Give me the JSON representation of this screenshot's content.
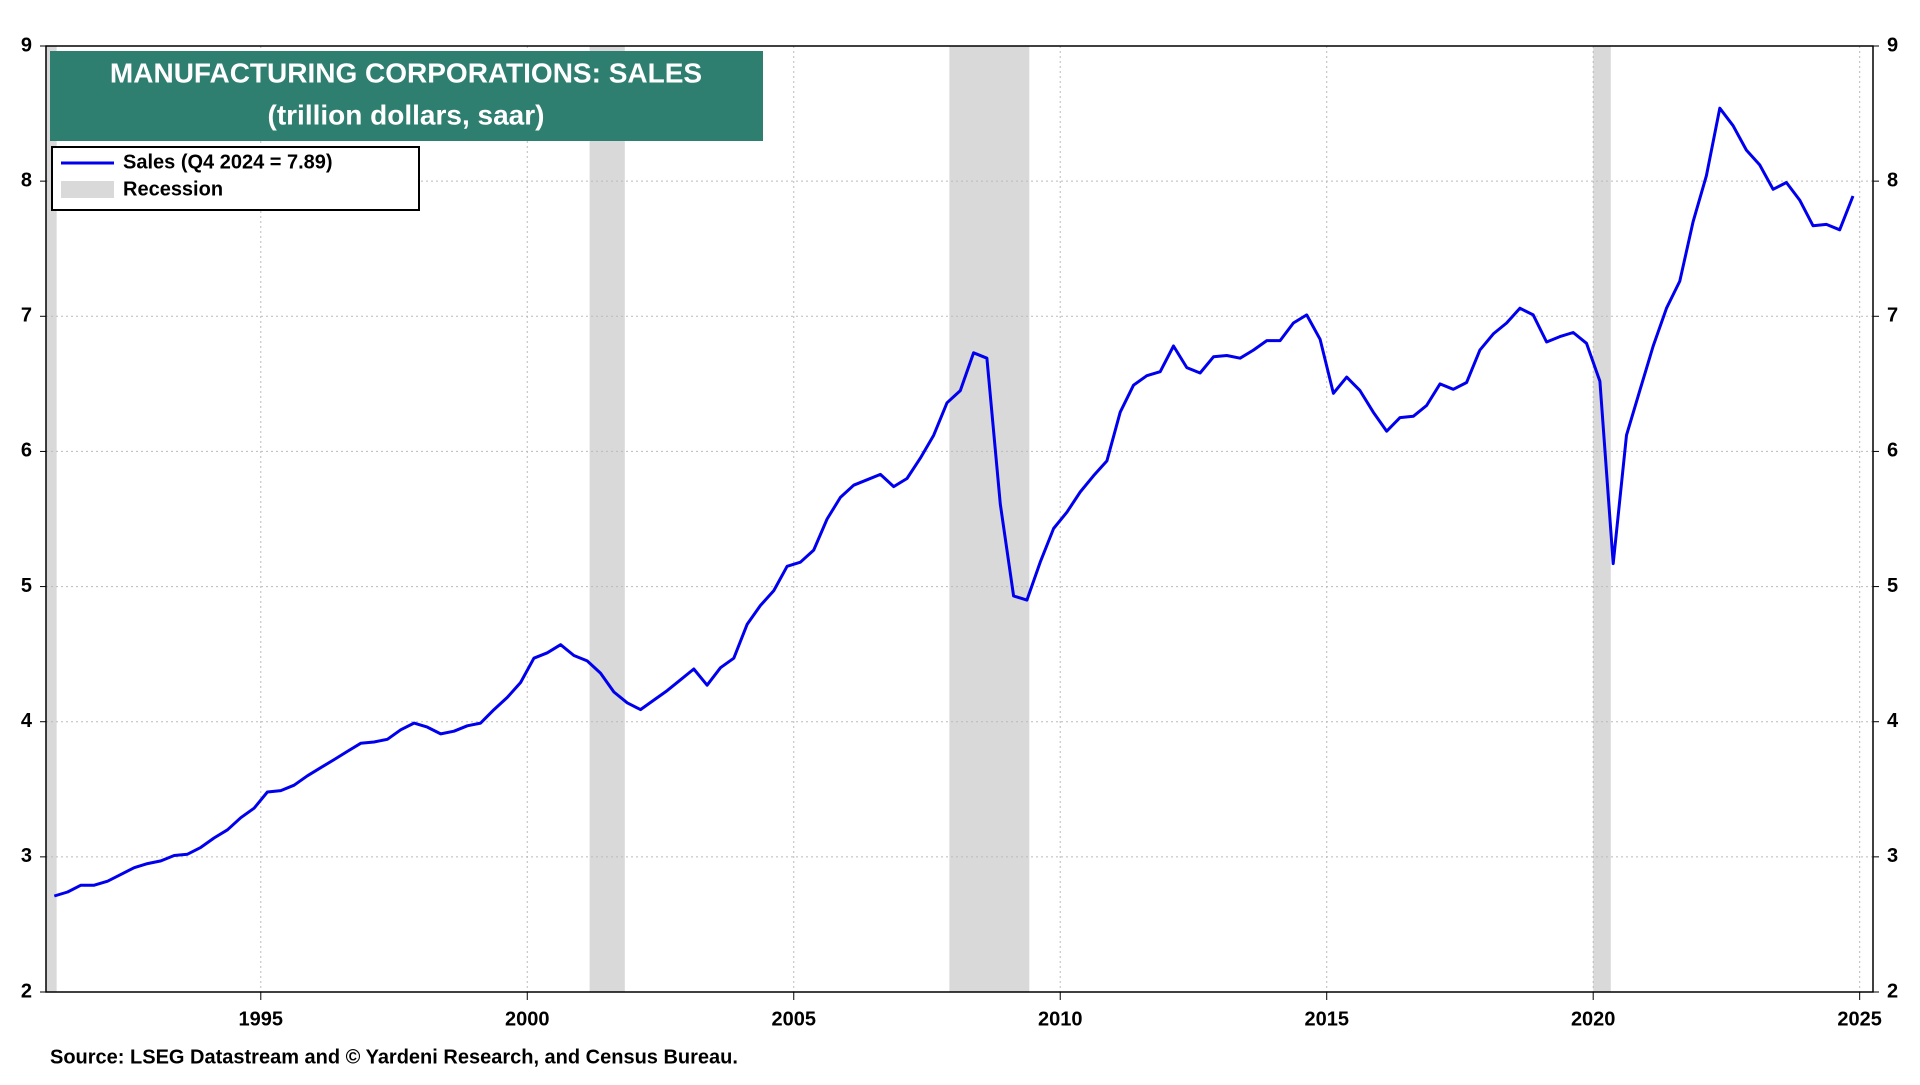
{
  "chart_data": {
    "type": "line",
    "title": "MANUFACTURING CORPORATIONS: SALES",
    "subtitle": "(trillion dollars, saar)",
    "source": "Source: LSEG Datastream and © Yardeni Research, and Census Bureau.",
    "x": [
      1991.125,
      1991.375,
      1991.625,
      1991.875,
      1992.125,
      1992.375,
      1992.625,
      1992.875,
      1993.125,
      1993.375,
      1993.625,
      1993.875,
      1994.125,
      1994.375,
      1994.625,
      1994.875,
      1995.125,
      1995.375,
      1995.625,
      1995.875,
      1996.125,
      1996.375,
      1996.625,
      1996.875,
      1997.125,
      1997.375,
      1997.625,
      1997.875,
      1998.125,
      1998.375,
      1998.625,
      1998.875,
      1999.125,
      1999.375,
      1999.625,
      1999.875,
      2000.125,
      2000.375,
      2000.625,
      2000.875,
      2001.125,
      2001.375,
      2001.625,
      2001.875,
      2002.125,
      2002.375,
      2002.625,
      2002.875,
      2003.125,
      2003.375,
      2003.625,
      2003.875,
      2004.125,
      2004.375,
      2004.625,
      2004.875,
      2005.125,
      2005.375,
      2005.625,
      2005.875,
      2006.125,
      2006.375,
      2006.625,
      2006.875,
      2007.125,
      2007.375,
      2007.625,
      2007.875,
      2008.125,
      2008.375,
      2008.625,
      2008.875,
      2009.125,
      2009.375,
      2009.625,
      2009.875,
      2010.125,
      2010.375,
      2010.625,
      2010.875,
      2011.125,
      2011.375,
      2011.625,
      2011.875,
      2012.125,
      2012.375,
      2012.625,
      2012.875,
      2013.125,
      2013.375,
      2013.625,
      2013.875,
      2014.125,
      2014.375,
      2014.625,
      2014.875,
      2015.125,
      2015.375,
      2015.625,
      2015.875,
      2016.125,
      2016.375,
      2016.625,
      2016.875,
      2017.125,
      2017.375,
      2017.625,
      2017.875,
      2018.125,
      2018.375,
      2018.625,
      2018.875,
      2019.125,
      2019.375,
      2019.625,
      2019.875,
      2020.125,
      2020.375,
      2020.625,
      2020.875,
      2021.125,
      2021.375,
      2021.625,
      2021.875,
      2022.125,
      2022.375,
      2022.625,
      2022.875,
      2023.125,
      2023.375,
      2023.625,
      2023.875,
      2024.125,
      2024.375,
      2024.625,
      2024.875
    ],
    "series": [
      {
        "name": "Sales (Q4 2024 = 7.89)",
        "color": "#0000ee",
        "values": [
          2.71,
          2.74,
          2.79,
          2.79,
          2.82,
          2.87,
          2.92,
          2.95,
          2.97,
          3.01,
          3.02,
          3.07,
          3.14,
          3.2,
          3.29,
          3.36,
          3.48,
          3.49,
          3.53,
          3.6,
          3.66,
          3.72,
          3.78,
          3.84,
          3.85,
          3.87,
          3.94,
          3.99,
          3.96,
          3.91,
          3.93,
          3.97,
          3.99,
          4.09,
          4.18,
          4.29,
          4.47,
          4.51,
          4.57,
          4.49,
          4.45,
          4.36,
          4.22,
          4.14,
          4.09,
          4.16,
          4.23,
          4.31,
          4.39,
          4.27,
          4.4,
          4.47,
          4.72,
          4.86,
          4.97,
          5.15,
          5.18,
          5.27,
          5.5,
          5.66,
          5.75,
          5.79,
          5.83,
          5.74,
          5.8,
          5.95,
          6.12,
          6.36,
          6.45,
          6.73,
          6.69,
          5.61,
          4.93,
          4.9,
          5.18,
          5.43,
          5.55,
          5.7,
          5.82,
          5.93,
          6.29,
          6.49,
          6.56,
          6.59,
          6.78,
          6.62,
          6.58,
          6.7,
          6.71,
          6.69,
          6.75,
          6.82,
          6.82,
          6.95,
          7.01,
          6.83,
          6.43,
          6.55,
          6.45,
          6.29,
          6.15,
          6.25,
          6.26,
          6.34,
          6.5,
          6.46,
          6.51,
          6.75,
          6.87,
          6.95,
          7.06,
          7.01,
          6.81,
          6.85,
          6.88,
          6.8,
          6.52,
          5.17,
          6.12,
          6.45,
          6.78,
          7.06,
          7.26,
          7.7,
          8.04,
          8.54,
          8.41,
          8.23,
          8.12,
          7.94,
          7.99,
          7.86,
          7.67,
          7.68,
          7.64,
          7.89
        ]
      }
    ],
    "recessions": {
      "name": "Recession",
      "color": "#d9d9d9",
      "periods": [
        [
          1990.58,
          1991.17
        ],
        [
          2001.17,
          2001.83
        ],
        [
          2007.92,
          2009.42
        ],
        [
          2020.0,
          2020.33
        ]
      ]
    },
    "xlim": [
      1990.97,
      2025.25
    ],
    "xticks": [
      1995,
      2000,
      2005,
      2010,
      2015,
      2020,
      2025
    ],
    "ylim": [
      2,
      9
    ],
    "yticks": [
      2,
      3,
      4,
      5,
      6,
      7,
      8,
      9
    ],
    "grid": true,
    "legend": "upper left",
    "title_color": "#2f7f71"
  }
}
